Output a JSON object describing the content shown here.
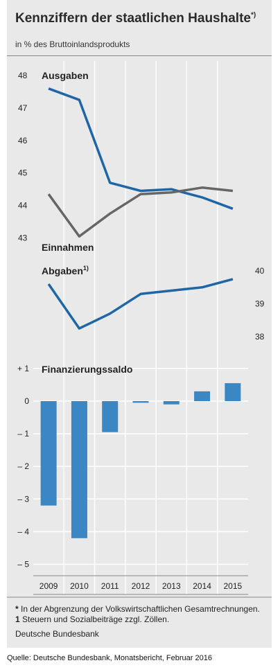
{
  "title": "Kennziffern der staatlichen Haushalte",
  "title_mark": "*)",
  "subtitle": "in % des Bruttoinlandsprodukts",
  "footnote_star": "*",
  "footnote_text": " In der Abgrenzung der Volkswirtschaftlichen Gesamtrechnungen.",
  "footnote_one": "1",
  "footnote_one_text": " Steuern und Sozialbeiträge zzgl. Zöllen.",
  "publisher": "Deutsche Bundesbank",
  "source": "Quelle: Deutsche Bundesbank, Monatsbericht, Februar 2016",
  "colors": {
    "blue_line": "#1f66a6",
    "gray_line": "#666666",
    "bar": "#3b87c3",
    "panel": "#e9e9e9"
  },
  "chart_data": [
    {
      "type": "line",
      "x": [
        "2009",
        "2010",
        "2011",
        "2012",
        "2013",
        "2014",
        "2015"
      ],
      "series": [
        {
          "name": "Ausgaben",
          "values": [
            47.6,
            47.25,
            44.7,
            44.45,
            44.5,
            44.25,
            43.9
          ]
        },
        {
          "name": "Einnahmen",
          "values": [
            44.35,
            43.05,
            43.75,
            44.35,
            44.4,
            44.55,
            44.45
          ]
        }
      ],
      "yticks": [
        "48",
        "47",
        "46",
        "45",
        "44",
        "43"
      ],
      "ylim": [
        43,
        48
      ],
      "grid": "vertical"
    },
    {
      "type": "line",
      "x": [
        "2009",
        "2010",
        "2011",
        "2012",
        "2013",
        "2014",
        "2015"
      ],
      "series": [
        {
          "name": "Abgaben",
          "sup": "1)",
          "values": [
            39.6,
            38.25,
            38.7,
            39.3,
            39.4,
            39.5,
            39.75
          ]
        }
      ],
      "yticks": [
        "40",
        "39",
        "38"
      ],
      "ylim": [
        38,
        40
      ],
      "axis_side": "right"
    },
    {
      "type": "bar",
      "categories": [
        "2009",
        "2010",
        "2011",
        "2012",
        "2013",
        "2014",
        "2015"
      ],
      "series": [
        {
          "name": "Finanzierungssaldo",
          "values": [
            -3.2,
            -4.2,
            -0.95,
            -0.05,
            -0.1,
            0.3,
            0.55
          ]
        }
      ],
      "yticks": [
        "+ 1",
        "0",
        "– 1",
        "– 2",
        "– 3",
        "– 4",
        "– 5"
      ],
      "ylim": [
        -5,
        1
      ],
      "grid": "horizontal"
    }
  ]
}
